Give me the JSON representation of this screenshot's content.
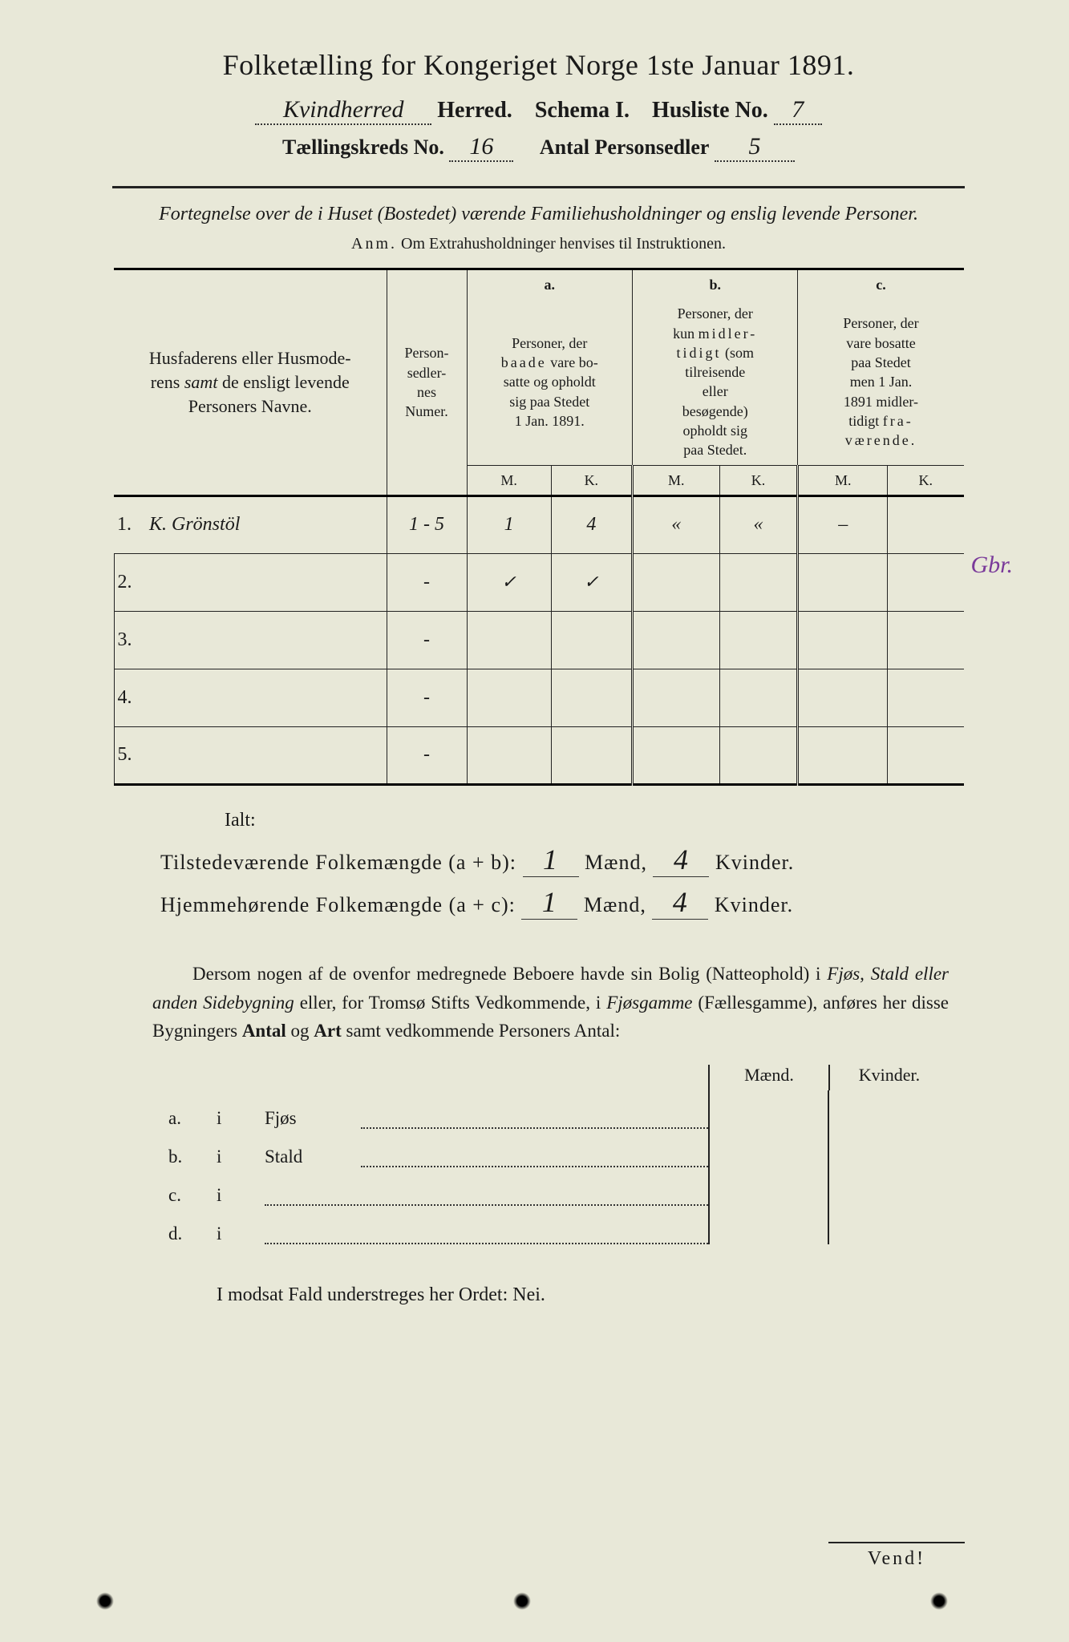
{
  "title": "Folketælling for Kongeriget Norge 1ste Januar 1891.",
  "header": {
    "herred_value": "Kvindherred",
    "herred_label": "Herred.",
    "schema_label": "Schema I.",
    "husliste_label": "Husliste No.",
    "husliste_value": "7",
    "kreds_label": "Tællingskreds No.",
    "kreds_value": "16",
    "antal_label": "Antal Personsedler",
    "antal_value": "5"
  },
  "subtitle": "Fortegnelse over de i Huset (Bostedet) værende Familiehusholdninger og enslig levende Personer.",
  "anm": "Anm. Om Extrahusholdninger henvises til Instruktionen.",
  "table": {
    "col1": "Husfaderens eller Husmoderens samt de ensligt levende Personers Navne.",
    "col2": "Person-sedler-nes Numer.",
    "col_a_label": "a.",
    "col_a": "Personer, der baade vare bosatte og opholdt sig paa Stedet 1 Jan. 1891.",
    "col_b_label": "b.",
    "col_b": "Personer, der kun midler-tidigt (som tilreisende eller besøgende) opholdt sig paa Stedet.",
    "col_c_label": "c.",
    "col_c": "Personer, der vare bosatte paa Stedet men 1 Jan. 1891 midler-tidigt fra-værende.",
    "M": "M.",
    "K": "K.",
    "margin_note": "Gbr.",
    "rows": [
      {
        "num": "1.",
        "name": "K. Grönstöl",
        "sedler": "1 - 5",
        "aM": "1",
        "aK": "4",
        "bM": "«",
        "bK": "«",
        "cM": "–",
        "cK": ""
      },
      {
        "num": "2.",
        "name": "",
        "sedler": "-",
        "aM": "✓",
        "aK": "✓",
        "bM": "",
        "bK": "",
        "cM": "",
        "cK": ""
      },
      {
        "num": "3.",
        "name": "",
        "sedler": "-",
        "aM": "",
        "aK": "",
        "bM": "",
        "bK": "",
        "cM": "",
        "cK": ""
      },
      {
        "num": "4.",
        "name": "",
        "sedler": "-",
        "aM": "",
        "aK": "",
        "bM": "",
        "bK": "",
        "cM": "",
        "cK": ""
      },
      {
        "num": "5.",
        "name": "",
        "sedler": "-",
        "aM": "",
        "aK": "",
        "bM": "",
        "bK": "",
        "cM": "",
        "cK": ""
      }
    ]
  },
  "ialt": "Ialt:",
  "summary": {
    "line1_label": "Tilstedeværende Folkemængde (a + b):",
    "line2_label": "Hjemmehørende Folkemængde (a + c):",
    "maend": "Mænd,",
    "kvinder": "Kvinder.",
    "v1m": "1",
    "v1k": "4",
    "v2m": "1",
    "v2k": "4"
  },
  "para": "Dersom nogen af de ovenfor medregnede Beboere havde sin Bolig (Natteophold) i Fjøs, Stald eller anden Sidebygning eller, for Tromsø Stifts Vedkommende, i Fjøsgamme (Fællesgamme), anføres her disse Bygningers Antal og Art samt vedkommende Personers Antal:",
  "side": {
    "head_m": "Mænd.",
    "head_k": "Kvinder.",
    "rows": [
      {
        "a": "a.",
        "i": "i",
        "text": "Fjøs"
      },
      {
        "a": "b.",
        "i": "i",
        "text": "Stald"
      },
      {
        "a": "c.",
        "i": "i",
        "text": ""
      },
      {
        "a": "d.",
        "i": "i",
        "text": ""
      }
    ]
  },
  "modsat": "I modsat Fald understreges her Ordet: Nei.",
  "vend": "Vend!",
  "colors": {
    "bg": "#e8e8d8",
    "text": "#1a1a1a",
    "purple": "#7a3a9a"
  }
}
